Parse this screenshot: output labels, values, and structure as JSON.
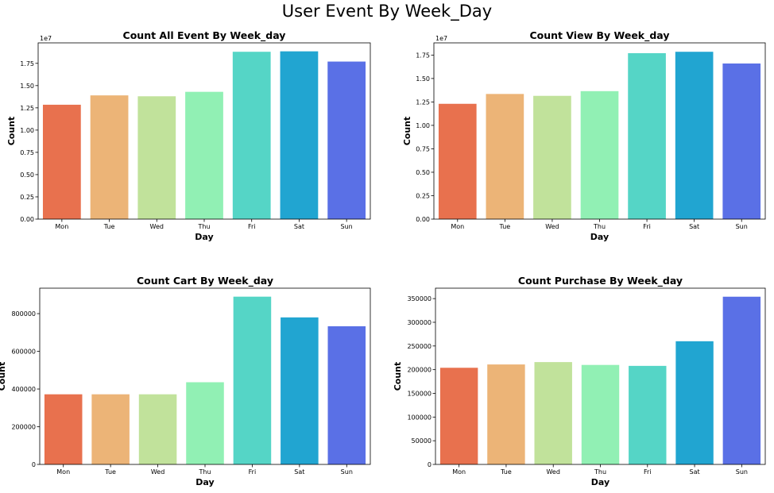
{
  "figure": {
    "title": "User Event By Week_Day"
  },
  "palette": [
    "#e8714e",
    "#ecb477",
    "#c1e29b",
    "#91f0b4",
    "#55d5c6",
    "#21a5d1",
    "#5a70e6"
  ],
  "chart_data": [
    {
      "type": "bar",
      "title": "Count All Event By Week_day",
      "xlabel": "Day",
      "ylabel": "Count",
      "categories": [
        "Mon",
        "Tue",
        "Wed",
        "Thu",
        "Fri",
        "Sat",
        "Sun"
      ],
      "values": [
        12850000,
        13900000,
        13800000,
        14300000,
        18800000,
        18850000,
        17700000
      ],
      "ylim": [
        0,
        19800000
      ],
      "yticks": [
        0,
        2500000,
        5000000,
        7500000,
        10000000,
        12500000,
        15000000,
        17500000
      ],
      "ytick_labels": [
        "0.00",
        "0.25",
        "0.50",
        "0.75",
        "1.00",
        "1.25",
        "1.50",
        "1.75"
      ],
      "offset_label": "1e7",
      "grid": false
    },
    {
      "type": "bar",
      "title": "Count View By Week_day",
      "xlabel": "Day",
      "ylabel": "Count",
      "categories": [
        "Mon",
        "Tue",
        "Wed",
        "Thu",
        "Fri",
        "Sat",
        "Sun"
      ],
      "values": [
        12300000,
        13350000,
        13150000,
        13650000,
        17700000,
        17850000,
        16600000
      ],
      "ylim": [
        0,
        18800000
      ],
      "yticks": [
        0,
        2500000,
        5000000,
        7500000,
        10000000,
        12500000,
        15000000,
        17500000
      ],
      "ytick_labels": [
        "0.00",
        "0.25",
        "0.50",
        "0.75",
        "1.00",
        "1.25",
        "1.50",
        "1.75"
      ],
      "offset_label": "1e7",
      "grid": false
    },
    {
      "type": "bar",
      "title": "Count Cart By Week_day",
      "xlabel": "Day",
      "ylabel": "Count",
      "categories": [
        "Mon",
        "Tue",
        "Wed",
        "Thu",
        "Fri",
        "Sat",
        "Sun"
      ],
      "values": [
        372000,
        372000,
        372000,
        436000,
        890000,
        780000,
        733000
      ],
      "ylim": [
        0,
        935000
      ],
      "yticks": [
        0,
        200000,
        400000,
        600000,
        800000
      ],
      "ytick_labels": [
        "0",
        "200000",
        "400000",
        "600000",
        "800000"
      ],
      "offset_label": "",
      "grid": false
    },
    {
      "type": "bar",
      "title": "Count Purchase By Week_day",
      "xlabel": "Day",
      "ylabel": "Count",
      "categories": [
        "Mon",
        "Tue",
        "Wed",
        "Thu",
        "Fri",
        "Sat",
        "Sun"
      ],
      "values": [
        204000,
        211000,
        216000,
        210000,
        208000,
        260000,
        354000
      ],
      "ylim": [
        0,
        372000
      ],
      "yticks": [
        0,
        50000,
        100000,
        150000,
        200000,
        250000,
        300000,
        350000
      ],
      "ytick_labels": [
        "0",
        "50000",
        "100000",
        "150000",
        "200000",
        "250000",
        "300000",
        "350000"
      ],
      "offset_label": "",
      "grid": false
    }
  ]
}
